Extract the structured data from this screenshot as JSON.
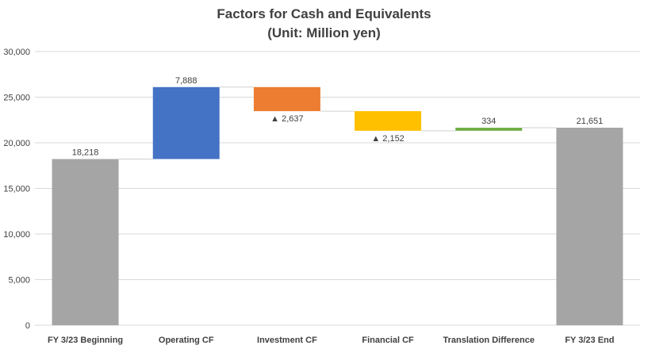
{
  "chart_data": {
    "type": "bar",
    "subtype": "waterfall",
    "title": "Factors for Cash and Equivalents",
    "subtitle": "(Unit: Million yen)",
    "categories": [
      "FY 3/23 Beginning",
      "Operating CF",
      "Investment CF",
      "Financial CF",
      "Translation Difference",
      "FY 3/23 End"
    ],
    "steps": [
      {
        "category": "FY 3/23 Beginning",
        "kind": "total",
        "start": 0,
        "end": 18218,
        "label": "18,218",
        "color": "#a5a5a5"
      },
      {
        "category": "Operating CF",
        "kind": "increase",
        "start": 18218,
        "end": 26106,
        "label": "7,888",
        "color": "#4472c4"
      },
      {
        "category": "Investment CF",
        "kind": "decrease",
        "start": 26106,
        "end": 23469,
        "label": "▲ 2,637",
        "color": "#ed7d31"
      },
      {
        "category": "Financial CF",
        "kind": "decrease",
        "start": 23469,
        "end": 21317,
        "label": "▲ 2,152",
        "color": "#ffc000"
      },
      {
        "category": "Translation Difference",
        "kind": "increase",
        "start": 21317,
        "end": 21651,
        "label": "334",
        "color": "#70ad47"
      },
      {
        "category": "FY 3/23 End",
        "kind": "total",
        "start": 0,
        "end": 21651,
        "label": "21,651",
        "color": "#a5a5a5"
      }
    ],
    "yticks": [
      "0",
      "5,000",
      "10,000",
      "15,000",
      "20,000",
      "25,000",
      "30,000"
    ],
    "ylim": [
      0,
      30000
    ],
    "grid": true,
    "legend": "none",
    "gridColor": "#d9d9d9",
    "textColor": "#404040"
  }
}
